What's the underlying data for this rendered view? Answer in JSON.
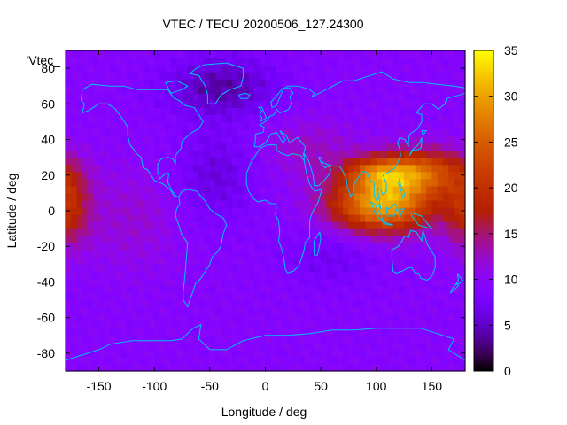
{
  "chart_data": {
    "type": "heatmap",
    "title": "VTEC / TECU 20200506_127.24300",
    "xlabel": "Longitude / deg",
    "ylabel": "Latitude / deg",
    "key_label": "'Vtec_",
    "xlim": [
      -180,
      180
    ],
    "ylim": [
      -90,
      90
    ],
    "x_ticks": [
      -150,
      -100,
      -50,
      0,
      50,
      100,
      150
    ],
    "y_ticks": [
      -80,
      -60,
      -40,
      -20,
      0,
      20,
      40,
      60,
      80
    ],
    "colorbar": {
      "range": [
        0,
        35
      ],
      "ticks": [
        0,
        5,
        10,
        15,
        20,
        25,
        30,
        35
      ],
      "colormap": "black-purple-red-orange-yellow"
    },
    "grid": false,
    "overlay": "coastlines",
    "coastline_color": "#00c0ff",
    "features": [
      {
        "description": "background VTEC",
        "value": 10
      },
      {
        "lon": 105,
        "lat": 5,
        "value": 30
      },
      {
        "lon": 130,
        "lat": 20,
        "value": 26
      },
      {
        "lon": -175,
        "lat": 5,
        "value": 20
      },
      {
        "lon": -40,
        "lat": 70,
        "value": 5
      }
    ]
  }
}
